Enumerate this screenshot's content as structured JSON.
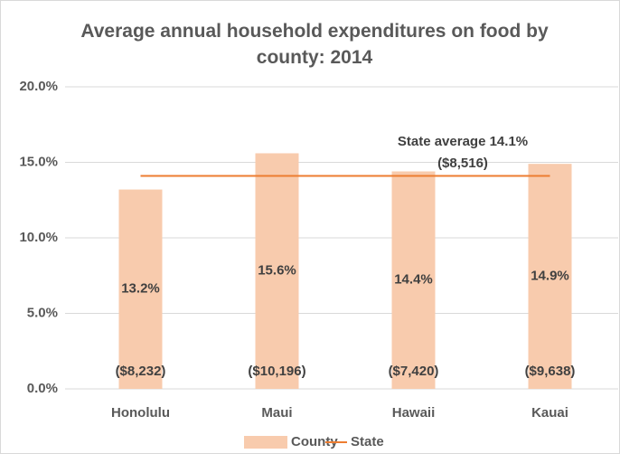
{
  "chart_data": {
    "type": "bar",
    "title": "Average annual household expenditures on food by county: 2014",
    "categories": [
      "Honolulu",
      "Maui",
      "Hawaii",
      "Kauai"
    ],
    "series": [
      {
        "name": "County",
        "type": "bar",
        "color": "#f8cbad",
        "values": [
          13.2,
          15.6,
          14.4,
          14.9
        ],
        "value_labels": [
          "13.2%",
          "15.6%",
          "14.4%",
          "14.9%"
        ],
        "dollar_labels": [
          "($8,232)",
          "($10,196)",
          "($7,420)",
          "($9,638)"
        ]
      },
      {
        "name": "State",
        "type": "line",
        "color": "#ed7d31",
        "values": [
          14.1,
          14.1,
          14.1,
          14.1
        ]
      }
    ],
    "annotations": [
      "State average 14.1%",
      "($8,516)"
    ],
    "ylim": [
      0,
      20
    ],
    "yticks": [
      {
        "value": 0,
        "label": "0.0%"
      },
      {
        "value": 5,
        "label": "5.0%"
      },
      {
        "value": 10,
        "label": "10.0%"
      },
      {
        "value": 15,
        "label": "15.0%"
      },
      {
        "value": 20,
        "label": "20.0%"
      }
    ],
    "grid": true,
    "legend": "bottom"
  }
}
